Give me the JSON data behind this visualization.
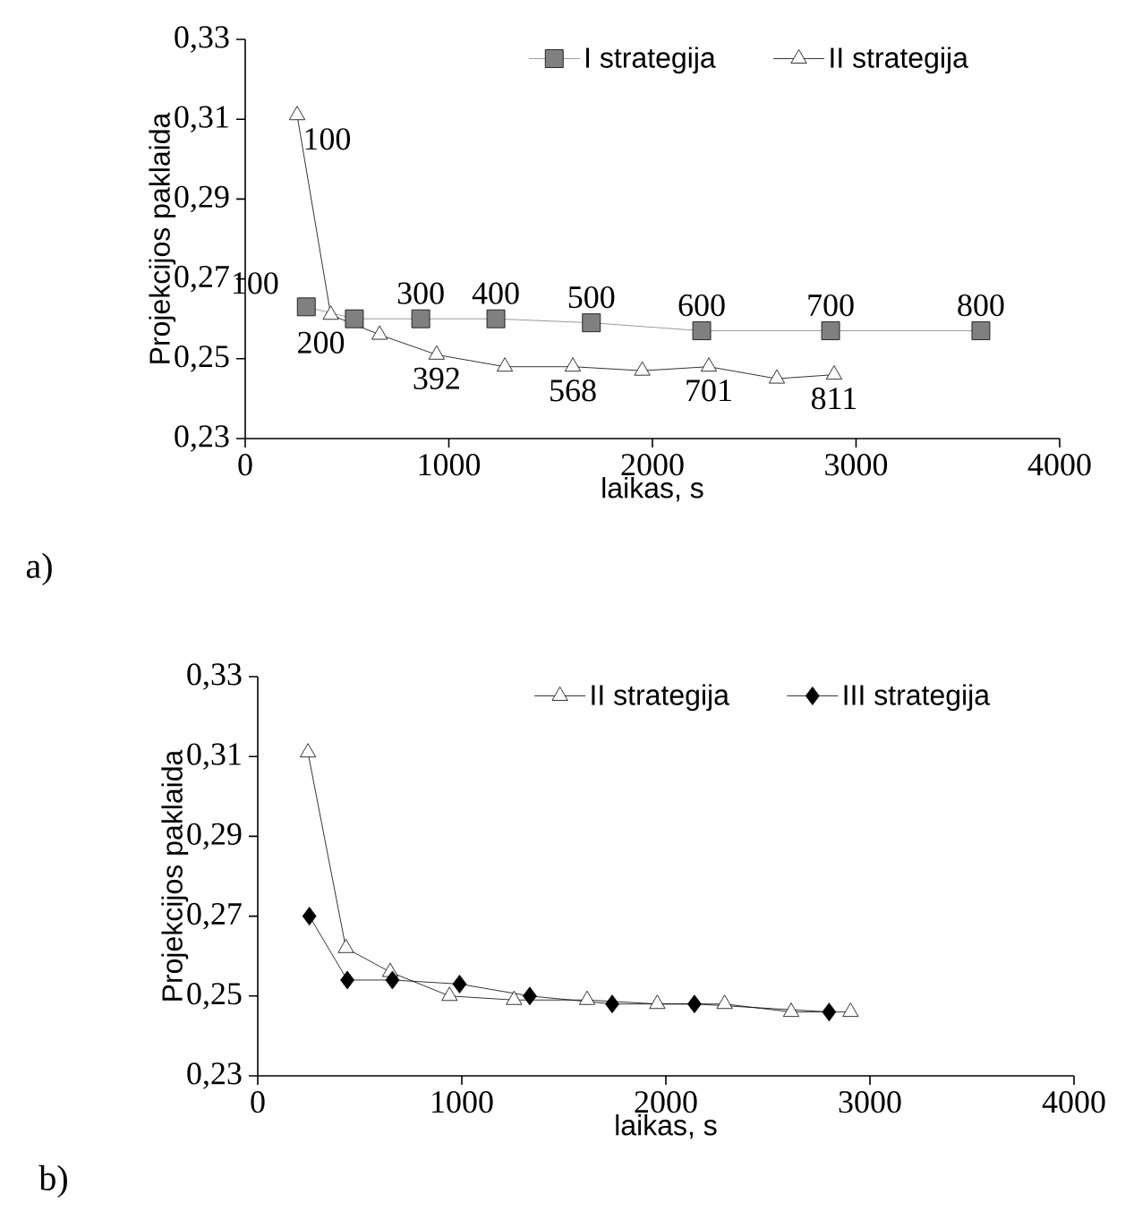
{
  "chart_data": [
    {
      "type": "line",
      "xlabel": "laikas, s",
      "ylabel": "Projekcijos paklaida",
      "annotations": [
        "a)",
        {
          "text": "100",
          "x": 300,
          "y": 0.263
        },
        {
          "text": "200",
          "x": 536,
          "y": 0.26
        },
        {
          "text": "300",
          "x": 862,
          "y": 0.26
        },
        {
          "text": "400",
          "x": 1231,
          "y": 0.26
        },
        {
          "text": "500",
          "x": 1700,
          "y": 0.259
        },
        {
          "text": "600",
          "x": 2242,
          "y": 0.257
        },
        {
          "text": "700",
          "x": 2875,
          "y": 0.257
        },
        {
          "text": "800",
          "x": 3613,
          "y": 0.257
        },
        {
          "text": "100",
          "x": 255,
          "y": 0.311
        },
        {
          "text": "392",
          "x": 940,
          "y": 0.251
        },
        {
          "text": "568",
          "x": 1609,
          "y": 0.248
        },
        {
          "text": "701",
          "x": 2277,
          "y": 0.248
        },
        {
          "text": "811",
          "x": 2892,
          "y": 0.246
        }
      ],
      "xlim": [
        0,
        4000
      ],
      "xticks": [
        0,
        1000,
        2000,
        3000,
        4000
      ],
      "ylim": [
        0.23,
        0.33
      ],
      "yticks": [
        {
          "value": 0.23,
          "label": "0,23"
        },
        {
          "value": 0.25,
          "label": "0,25"
        },
        {
          "value": 0.27,
          "label": "0,27"
        },
        {
          "value": 0.29,
          "label": "0,29"
        },
        {
          "value": 0.31,
          "label": "0,31"
        },
        {
          "value": 0.33,
          "label": "0,33"
        }
      ],
      "legend": "top",
      "grid": false,
      "series": [
        {
          "name": "I strategija",
          "color": "#808080",
          "marker": "square",
          "x": [
            300,
            536,
            862,
            1231,
            1700,
            2242,
            2875,
            3613
          ],
          "values": [
            0.263,
            0.26,
            0.26,
            0.26,
            0.259,
            0.257,
            0.257,
            0.257
          ]
        },
        {
          "name": "II strategija",
          "color": "#000000",
          "marker": "triangle",
          "x": [
            255,
            420,
            660,
            940,
            1275,
            1609,
            1950,
            2277,
            2611,
            2892
          ],
          "values": [
            0.311,
            0.261,
            0.256,
            0.251,
            0.248,
            0.248,
            0.247,
            0.248,
            0.245,
            0.246
          ]
        }
      ]
    },
    {
      "type": "line",
      "xlabel": "laikas, s",
      "ylabel": "Projekcijos paklaida",
      "annotations": [
        "b)"
      ],
      "xlim": [
        0,
        4000
      ],
      "xticks": [
        0,
        1000,
        2000,
        3000,
        4000
      ],
      "ylim": [
        0.23,
        0.33
      ],
      "yticks": [
        {
          "value": 0.23,
          "label": "0,23"
        },
        {
          "value": 0.25,
          "label": "0,25"
        },
        {
          "value": 0.27,
          "label": "0,27"
        },
        {
          "value": 0.29,
          "label": "0,29"
        },
        {
          "value": 0.31,
          "label": "0,31"
        },
        {
          "value": 0.33,
          "label": "0,33"
        }
      ],
      "legend": "top",
      "grid": false,
      "series": [
        {
          "name": "II strategija",
          "color": "#000000",
          "marker": "triangle",
          "x": [
            246,
            432,
            649,
            940,
            1256,
            1614,
            1958,
            2288,
            2614,
            2905
          ],
          "values": [
            0.311,
            0.262,
            0.256,
            0.25,
            0.249,
            0.249,
            0.248,
            0.248,
            0.246,
            0.246
          ]
        },
        {
          "name": "III strategija",
          "color": "#000000",
          "marker": "diamond",
          "x": [
            253,
            439,
            660,
            989,
            1333,
            1737,
            2140,
            2800
          ],
          "values": [
            0.27,
            0.254,
            0.254,
            0.253,
            0.25,
            0.248,
            0.248,
            0.246
          ]
        }
      ]
    }
  ]
}
